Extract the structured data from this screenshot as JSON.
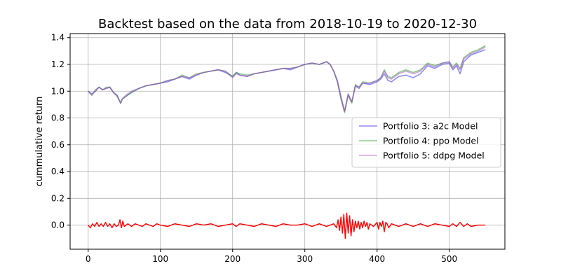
{
  "chart_data": {
    "type": "line",
    "title": "Backtest based on the data from 2018-10-19 to 2020-12-30",
    "xlabel": "",
    "ylabel": "cummulative return",
    "xlim": [
      -25,
      577
    ],
    "ylim": [
      -0.18,
      1.43
    ],
    "xticks": [
      0,
      100,
      200,
      300,
      400,
      500
    ],
    "yticks": [
      0.0,
      0.2,
      0.4,
      0.6,
      0.8,
      1.0,
      1.2,
      1.4
    ],
    "grid": true,
    "legend_position": "center-right",
    "series": [
      {
        "name": "Portfolio 3: a2c Model",
        "color": "#3030f0",
        "points": [
          [
            0,
            1.0
          ],
          [
            5,
            0.98
          ],
          [
            10,
            1.0
          ],
          [
            15,
            1.03
          ],
          [
            20,
            1.01
          ],
          [
            25,
            1.02
          ],
          [
            30,
            1.03
          ],
          [
            35,
            0.99
          ],
          [
            40,
            0.97
          ],
          [
            45,
            0.91
          ],
          [
            47,
            0.94
          ],
          [
            52,
            0.96
          ],
          [
            60,
            0.99
          ],
          [
            70,
            1.02
          ],
          [
            80,
            1.04
          ],
          [
            90,
            1.05
          ],
          [
            100,
            1.06
          ],
          [
            110,
            1.07
          ],
          [
            120,
            1.09
          ],
          [
            130,
            1.11
          ],
          [
            140,
            1.09
          ],
          [
            150,
            1.12
          ],
          [
            160,
            1.14
          ],
          [
            170,
            1.15
          ],
          [
            180,
            1.16
          ],
          [
            190,
            1.14
          ],
          [
            200,
            1.11
          ],
          [
            205,
            1.14
          ],
          [
            210,
            1.12
          ],
          [
            220,
            1.11
          ],
          [
            230,
            1.13
          ],
          [
            240,
            1.14
          ],
          [
            250,
            1.15
          ],
          [
            260,
            1.16
          ],
          [
            270,
            1.17
          ],
          [
            280,
            1.16
          ],
          [
            290,
            1.18
          ],
          [
            300,
            1.2
          ],
          [
            310,
            1.21
          ],
          [
            320,
            1.2
          ],
          [
            330,
            1.22
          ],
          [
            335,
            1.2
          ],
          [
            340,
            1.15
          ],
          [
            345,
            1.08
          ],
          [
            350,
            0.96
          ],
          [
            355,
            0.85
          ],
          [
            360,
            0.98
          ],
          [
            365,
            0.92
          ],
          [
            370,
            1.04
          ],
          [
            375,
            1.02
          ],
          [
            380,
            1.06
          ],
          [
            390,
            1.05
          ],
          [
            400,
            1.07
          ],
          [
            405,
            1.09
          ],
          [
            410,
            1.13
          ],
          [
            415,
            1.08
          ],
          [
            420,
            1.07
          ],
          [
            430,
            1.11
          ],
          [
            440,
            1.12
          ],
          [
            450,
            1.1
          ],
          [
            460,
            1.13
          ],
          [
            470,
            1.19
          ],
          [
            480,
            1.17
          ],
          [
            490,
            1.2
          ],
          [
            500,
            1.21
          ],
          [
            505,
            1.16
          ],
          [
            510,
            1.19
          ],
          [
            515,
            1.13
          ],
          [
            520,
            1.22
          ],
          [
            530,
            1.27
          ],
          [
            540,
            1.29
          ],
          [
            550,
            1.31
          ]
        ]
      },
      {
        "name": "Portfolio 4: ppo Model",
        "color": "#2ca02c",
        "points": [
          [
            0,
            1.0
          ],
          [
            5,
            0.97
          ],
          [
            10,
            1.01
          ],
          [
            15,
            1.03
          ],
          [
            20,
            1.01
          ],
          [
            25,
            1.03
          ],
          [
            30,
            1.03
          ],
          [
            35,
            0.99
          ],
          [
            40,
            0.97
          ],
          [
            45,
            0.91
          ],
          [
            47,
            0.94
          ],
          [
            52,
            0.96
          ],
          [
            60,
            0.99
          ],
          [
            70,
            1.02
          ],
          [
            80,
            1.04
          ],
          [
            90,
            1.05
          ],
          [
            100,
            1.06
          ],
          [
            110,
            1.08
          ],
          [
            120,
            1.09
          ],
          [
            130,
            1.12
          ],
          [
            140,
            1.1
          ],
          [
            150,
            1.13
          ],
          [
            160,
            1.14
          ],
          [
            170,
            1.15
          ],
          [
            180,
            1.16
          ],
          [
            190,
            1.15
          ],
          [
            200,
            1.11
          ],
          [
            205,
            1.14
          ],
          [
            210,
            1.13
          ],
          [
            220,
            1.12
          ],
          [
            230,
            1.13
          ],
          [
            240,
            1.14
          ],
          [
            250,
            1.15
          ],
          [
            260,
            1.16
          ],
          [
            270,
            1.17
          ],
          [
            280,
            1.17
          ],
          [
            290,
            1.18
          ],
          [
            300,
            1.2
          ],
          [
            310,
            1.21
          ],
          [
            320,
            1.2
          ],
          [
            330,
            1.22
          ],
          [
            335,
            1.2
          ],
          [
            340,
            1.15
          ],
          [
            345,
            1.07
          ],
          [
            350,
            0.94
          ],
          [
            355,
            0.84
          ],
          [
            360,
            0.97
          ],
          [
            365,
            0.91
          ],
          [
            370,
            1.05
          ],
          [
            375,
            1.03
          ],
          [
            380,
            1.07
          ],
          [
            390,
            1.06
          ],
          [
            400,
            1.08
          ],
          [
            405,
            1.1
          ],
          [
            410,
            1.16
          ],
          [
            415,
            1.11
          ],
          [
            420,
            1.1
          ],
          [
            430,
            1.14
          ],
          [
            440,
            1.16
          ],
          [
            450,
            1.14
          ],
          [
            460,
            1.16
          ],
          [
            470,
            1.21
          ],
          [
            480,
            1.19
          ],
          [
            490,
            1.21
          ],
          [
            500,
            1.22
          ],
          [
            505,
            1.18
          ],
          [
            510,
            1.21
          ],
          [
            515,
            1.17
          ],
          [
            520,
            1.25
          ],
          [
            530,
            1.29
          ],
          [
            540,
            1.31
          ],
          [
            550,
            1.34
          ]
        ]
      },
      {
        "name": "Portfolio 5: ddpg Model",
        "color": "#b050c8",
        "points": [
          [
            0,
            1.0
          ],
          [
            5,
            0.97
          ],
          [
            10,
            1.0
          ],
          [
            15,
            1.03
          ],
          [
            20,
            1.01
          ],
          [
            25,
            1.02
          ],
          [
            30,
            1.03
          ],
          [
            35,
            0.99
          ],
          [
            40,
            0.96
          ],
          [
            45,
            0.91
          ],
          [
            47,
            0.94
          ],
          [
            52,
            0.97
          ],
          [
            60,
            1.0
          ],
          [
            70,
            1.02
          ],
          [
            80,
            1.04
          ],
          [
            90,
            1.05
          ],
          [
            100,
            1.06
          ],
          [
            110,
            1.08
          ],
          [
            120,
            1.09
          ],
          [
            130,
            1.11
          ],
          [
            140,
            1.1
          ],
          [
            150,
            1.12
          ],
          [
            160,
            1.14
          ],
          [
            170,
            1.15
          ],
          [
            180,
            1.16
          ],
          [
            190,
            1.15
          ],
          [
            200,
            1.1
          ],
          [
            205,
            1.13
          ],
          [
            210,
            1.12
          ],
          [
            220,
            1.11
          ],
          [
            230,
            1.13
          ],
          [
            240,
            1.14
          ],
          [
            250,
            1.15
          ],
          [
            260,
            1.16
          ],
          [
            270,
            1.17
          ],
          [
            280,
            1.17
          ],
          [
            290,
            1.18
          ],
          [
            300,
            1.2
          ],
          [
            310,
            1.21
          ],
          [
            320,
            1.2
          ],
          [
            330,
            1.22
          ],
          [
            335,
            1.2
          ],
          [
            340,
            1.15
          ],
          [
            345,
            1.07
          ],
          [
            350,
            0.95
          ],
          [
            355,
            0.85
          ],
          [
            360,
            0.97
          ],
          [
            365,
            0.92
          ],
          [
            370,
            1.04
          ],
          [
            375,
            1.03
          ],
          [
            380,
            1.06
          ],
          [
            390,
            1.06
          ],
          [
            400,
            1.08
          ],
          [
            405,
            1.1
          ],
          [
            410,
            1.15
          ],
          [
            415,
            1.1
          ],
          [
            420,
            1.09
          ],
          [
            430,
            1.13
          ],
          [
            440,
            1.15
          ],
          [
            450,
            1.13
          ],
          [
            460,
            1.15
          ],
          [
            470,
            1.2
          ],
          [
            480,
            1.18
          ],
          [
            490,
            1.21
          ],
          [
            500,
            1.22
          ],
          [
            505,
            1.17
          ],
          [
            510,
            1.2
          ],
          [
            515,
            1.16
          ],
          [
            520,
            1.24
          ],
          [
            530,
            1.28
          ],
          [
            540,
            1.3
          ],
          [
            550,
            1.33
          ]
        ]
      },
      {
        "name": "",
        "color": "#ff0000",
        "points": [
          [
            0,
            0.0
          ],
          [
            3,
            -0.02
          ],
          [
            6,
            0.01
          ],
          [
            9,
            -0.01
          ],
          [
            12,
            0.02
          ],
          [
            15,
            -0.01
          ],
          [
            18,
            0.01
          ],
          [
            21,
            -0.01
          ],
          [
            24,
            0.02
          ],
          [
            27,
            -0.01
          ],
          [
            30,
            0.01
          ],
          [
            33,
            -0.02
          ],
          [
            36,
            0.01
          ],
          [
            39,
            -0.01
          ],
          [
            42,
            0.0
          ],
          [
            44,
            0.04
          ],
          [
            46,
            -0.02
          ],
          [
            48,
            0.03
          ],
          [
            50,
            -0.01
          ],
          [
            55,
            0.01
          ],
          [
            60,
            -0.01
          ],
          [
            65,
            0.01
          ],
          [
            70,
            0.0
          ],
          [
            75,
            -0.01
          ],
          [
            80,
            0.01
          ],
          [
            85,
            0.0
          ],
          [
            90,
            -0.01
          ],
          [
            95,
            0.01
          ],
          [
            100,
            0.0
          ],
          [
            110,
            -0.01
          ],
          [
            120,
            0.01
          ],
          [
            130,
            0.0
          ],
          [
            140,
            -0.01
          ],
          [
            150,
            0.01
          ],
          [
            160,
            0.0
          ],
          [
            170,
            0.01
          ],
          [
            180,
            -0.01
          ],
          [
            190,
            0.0
          ],
          [
            200,
            0.01
          ],
          [
            205,
            -0.01
          ],
          [
            210,
            0.01
          ],
          [
            220,
            0.0
          ],
          [
            230,
            -0.01
          ],
          [
            240,
            0.01
          ],
          [
            250,
            0.0
          ],
          [
            260,
            -0.01
          ],
          [
            270,
            0.01
          ],
          [
            280,
            0.0
          ],
          [
            290,
            0.0
          ],
          [
            300,
            0.01
          ],
          [
            310,
            -0.01
          ],
          [
            320,
            0.01
          ],
          [
            330,
            -0.01
          ],
          [
            340,
            0.01
          ],
          [
            344,
            -0.02
          ],
          [
            346,
            0.04
          ],
          [
            348,
            -0.04
          ],
          [
            350,
            0.06
          ],
          [
            352,
            -0.06
          ],
          [
            354,
            0.08
          ],
          [
            356,
            -0.1
          ],
          [
            358,
            0.09
          ],
          [
            360,
            -0.06
          ],
          [
            362,
            0.07
          ],
          [
            364,
            -0.08
          ],
          [
            366,
            0.04
          ],
          [
            368,
            -0.05
          ],
          [
            370,
            0.03
          ],
          [
            372,
            -0.02
          ],
          [
            374,
            0.03
          ],
          [
            376,
            -0.03
          ],
          [
            378,
            0.02
          ],
          [
            380,
            -0.02
          ],
          [
            382,
            0.03
          ],
          [
            384,
            -0.01
          ],
          [
            386,
            0.02
          ],
          [
            388,
            -0.03
          ],
          [
            390,
            0.01
          ],
          [
            395,
            -0.01
          ],
          [
            400,
            0.02
          ],
          [
            402,
            -0.03
          ],
          [
            404,
            0.02
          ],
          [
            406,
            -0.01
          ],
          [
            408,
            0.03
          ],
          [
            410,
            -0.05
          ],
          [
            412,
            0.02
          ],
          [
            414,
            0.01
          ],
          [
            416,
            -0.02
          ],
          [
            420,
            0.01
          ],
          [
            430,
            -0.01
          ],
          [
            440,
            0.01
          ],
          [
            450,
            -0.01
          ],
          [
            460,
            0.01
          ],
          [
            470,
            -0.01
          ],
          [
            480,
            0.01
          ],
          [
            490,
            0.0
          ],
          [
            500,
            -0.01
          ],
          [
            505,
            0.01
          ],
          [
            510,
            -0.01
          ],
          [
            515,
            0.02
          ],
          [
            520,
            -0.01
          ],
          [
            525,
            0.01
          ],
          [
            530,
            -0.01
          ],
          [
            540,
            0.0
          ],
          [
            550,
            0.0
          ]
        ]
      }
    ]
  }
}
